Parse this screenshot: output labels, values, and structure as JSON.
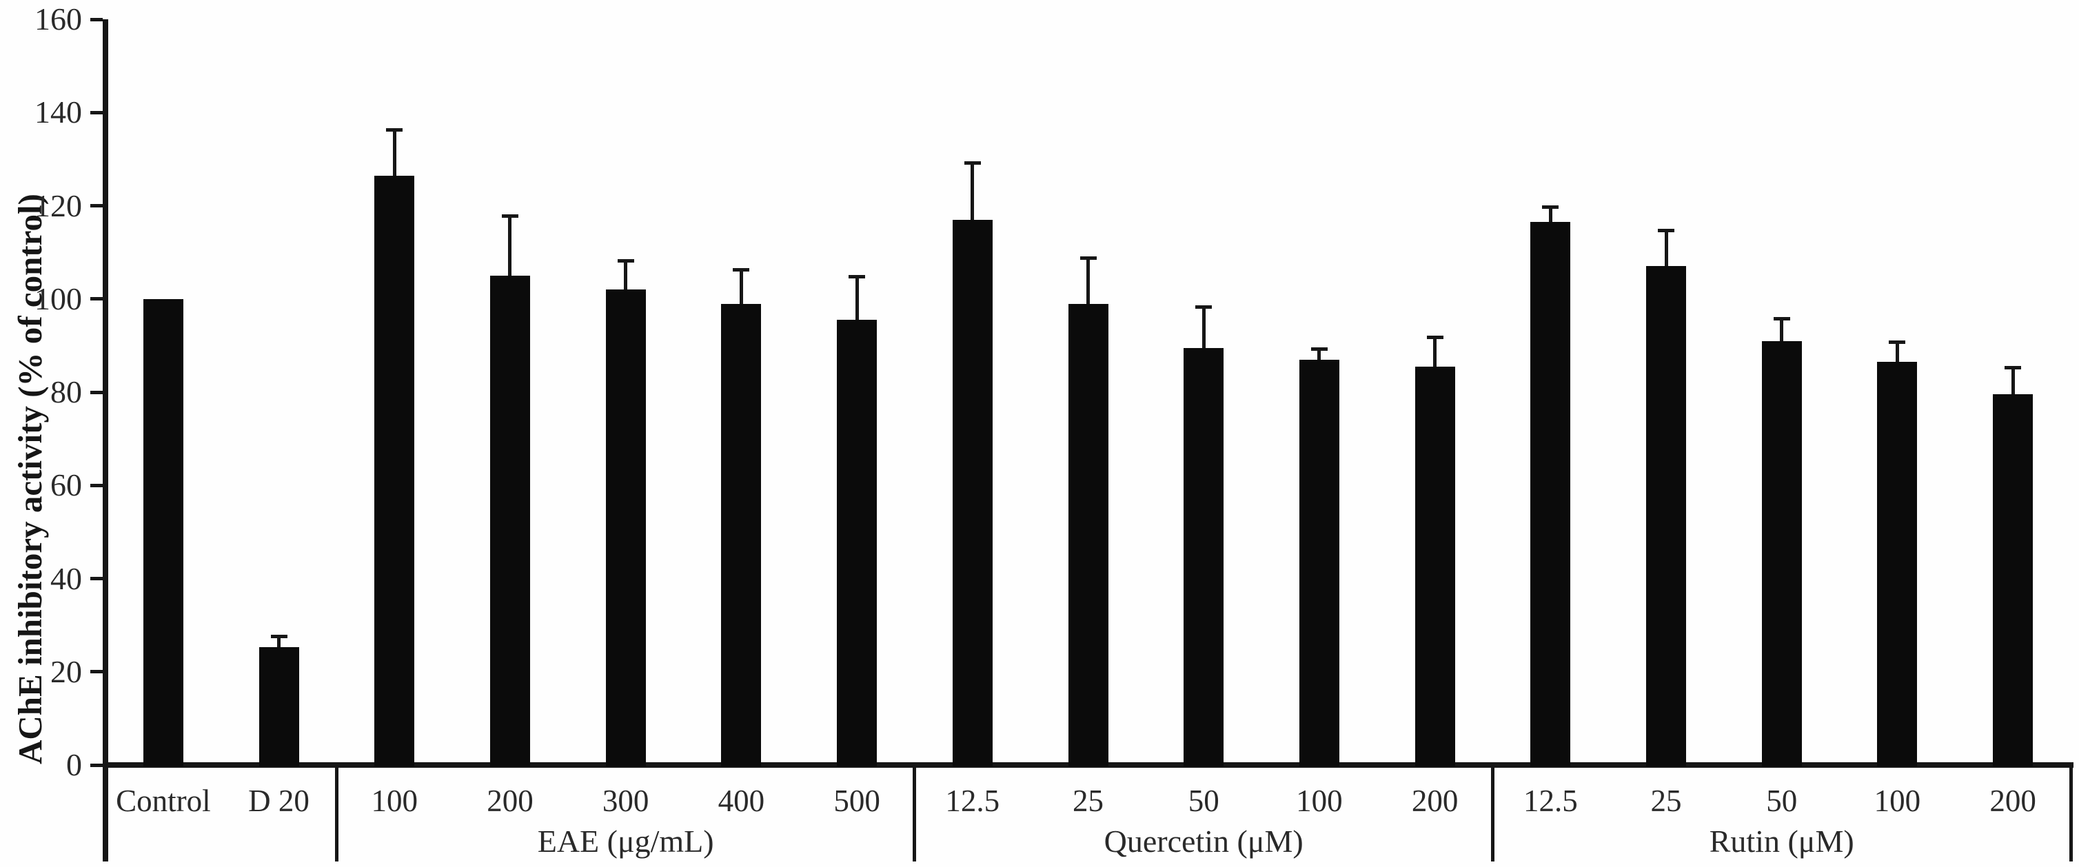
{
  "chart_data": {
    "type": "bar",
    "title": "",
    "xlabel": "",
    "ylabel": "AChE inhibitory activity (% of control)",
    "ylim": [
      0,
      160
    ],
    "yticks": [
      0,
      20,
      40,
      60,
      80,
      100,
      120,
      140,
      160
    ],
    "grid": false,
    "legend": "none",
    "bar_color": "#0b0b0b",
    "background_color": "#fefefe",
    "error_bars": "upper whisker with cap",
    "groups": [
      {
        "label": "",
        "categories": [
          "Control",
          "D 20"
        ],
        "values": [
          100,
          25.3
        ],
        "errors": [
          0,
          2
        ]
      },
      {
        "label": "EAE (μg/mL)",
        "categories": [
          "100",
          "200",
          "300",
          "400",
          "500"
        ],
        "values": [
          126.5,
          105,
          102,
          99,
          95.5
        ],
        "errors": [
          9.5,
          12.5,
          6,
          7,
          9
        ]
      },
      {
        "label": "Quercetin (μM)",
        "categories": [
          "12.5",
          "25",
          "50",
          "100",
          "200"
        ],
        "values": [
          117,
          99,
          89.5,
          87,
          85.5
        ],
        "errors": [
          12,
          9.5,
          8.5,
          2,
          6
        ]
      },
      {
        "label": "Rutin (μM)",
        "categories": [
          "12.5",
          "25",
          "50",
          "100",
          "200"
        ],
        "values": [
          116.5,
          107,
          91,
          86.5,
          79.5
        ],
        "errors": [
          3,
          7.5,
          4.5,
          4,
          5.5
        ]
      }
    ]
  }
}
